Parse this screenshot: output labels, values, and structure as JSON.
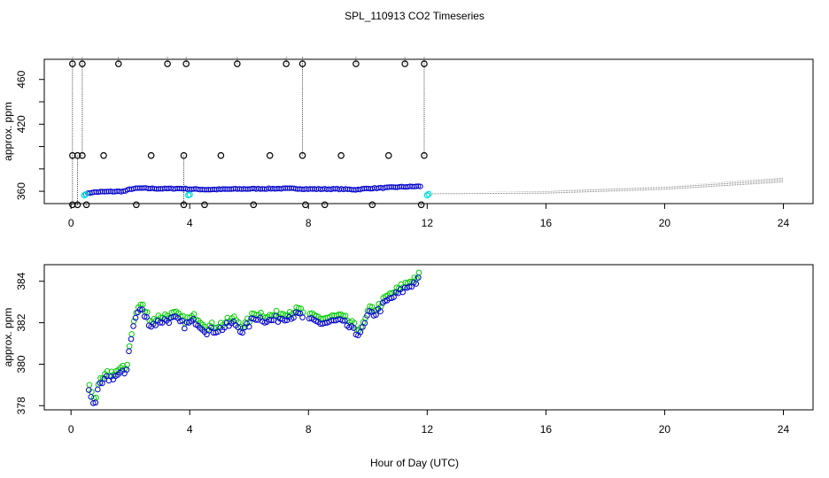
{
  "chart_data": {
    "title": "SPL_110913  CO2 Timeseries",
    "xlabel": "Hour of Day (UTC)",
    "panels": [
      {
        "name": "top",
        "type": "scatter",
        "ylabel": "approx. ppm",
        "xlim": [
          -0.9,
          25.0
        ],
        "ylim": [
          349,
          478
        ],
        "xticks": [
          0,
          4,
          8,
          12,
          16,
          20,
          24
        ],
        "yticks": [
          360,
          380,
          400,
          420,
          440,
          460
        ],
        "ytick_labels": [
          "360",
          "",
          "",
          "420",
          "",
          "460"
        ],
        "colors": {
          "spikes": "#000000",
          "main": "#0000cc",
          "cyan": "#00dddd",
          "grey": "#555555"
        },
        "spike_events": [
          {
            "x": 0.05,
            "values": [
              474,
              392,
              348
            ]
          },
          {
            "x": 0.22,
            "values": [
              392,
              348
            ]
          },
          {
            "x": 0.38,
            "values": [
              474,
              392
            ]
          },
          {
            "x": 0.52,
            "values": [
              348
            ]
          },
          {
            "x": 1.1,
            "values": [
              392
            ]
          },
          {
            "x": 1.6,
            "values": [
              474
            ]
          },
          {
            "x": 2.2,
            "values": [
              348
            ]
          },
          {
            "x": 2.7,
            "values": [
              392
            ]
          },
          {
            "x": 3.25,
            "values": [
              474
            ]
          },
          {
            "x": 3.8,
            "values": [
              392,
              348
            ]
          },
          {
            "x": 3.88,
            "values": [
              474
            ]
          },
          {
            "x": 4.5,
            "values": [
              348
            ]
          },
          {
            "x": 5.05,
            "values": [
              392
            ]
          },
          {
            "x": 5.6,
            "values": [
              474
            ]
          },
          {
            "x": 6.15,
            "values": [
              348
            ]
          },
          {
            "x": 6.7,
            "values": [
              392
            ]
          },
          {
            "x": 7.25,
            "values": [
              474
            ]
          },
          {
            "x": 7.8,
            "values": [
              474,
              392
            ]
          },
          {
            "x": 7.9,
            "values": [
              348
            ]
          },
          {
            "x": 8.55,
            "values": [
              348
            ]
          },
          {
            "x": 9.1,
            "values": [
              392
            ]
          },
          {
            "x": 9.6,
            "values": [
              474
            ]
          },
          {
            "x": 10.15,
            "values": [
              348
            ]
          },
          {
            "x": 10.7,
            "values": [
              392
            ]
          },
          {
            "x": 11.25,
            "values": [
              474
            ]
          },
          {
            "x": 11.8,
            "values": [
              348
            ]
          },
          {
            "x": 11.9,
            "values": [
              474,
              392
            ]
          }
        ],
        "main_series": [
          {
            "x": 0.5,
            "y": 357.5
          },
          {
            "x": 0.7,
            "y": 359
          },
          {
            "x": 1.0,
            "y": 359.5
          },
          {
            "x": 1.5,
            "y": 359.8
          },
          {
            "x": 1.8,
            "y": 360
          },
          {
            "x": 2.0,
            "y": 362
          },
          {
            "x": 2.3,
            "y": 362.8
          },
          {
            "x": 3.0,
            "y": 362.3
          },
          {
            "x": 3.7,
            "y": 362.5
          },
          {
            "x": 4.0,
            "y": 362
          },
          {
            "x": 4.6,
            "y": 361.5
          },
          {
            "x": 5.5,
            "y": 362
          },
          {
            "x": 6.5,
            "y": 362.3
          },
          {
            "x": 7.5,
            "y": 362.5
          },
          {
            "x": 8.0,
            "y": 362
          },
          {
            "x": 9.0,
            "y": 362
          },
          {
            "x": 9.6,
            "y": 361.5
          },
          {
            "x": 10.0,
            "y": 362.5
          },
          {
            "x": 10.5,
            "y": 363
          },
          {
            "x": 11.0,
            "y": 363.8
          },
          {
            "x": 11.8,
            "y": 364.5
          }
        ],
        "cyan_points": [
          {
            "x": 0.45,
            "y": 356.5
          },
          {
            "x": 0.5,
            "y": 357.2
          },
          {
            "x": 3.95,
            "y": 356.5
          },
          {
            "x": 4.0,
            "y": 357
          },
          {
            "x": 12.0,
            "y": 356.5
          },
          {
            "x": 12.05,
            "y": 357.5
          }
        ],
        "grey_series": [
          {
            "x": 12.0,
            "y": 358
          },
          {
            "x": 16.0,
            "y": 359
          },
          {
            "x": 20.0,
            "y": 363
          },
          {
            "x": 24.0,
            "y": 370
          }
        ]
      },
      {
        "name": "bottom",
        "type": "scatter",
        "ylabel": "approx. ppm",
        "xlim": [
          -0.9,
          25.0
        ],
        "ylim": [
          377.8,
          384.8
        ],
        "xticks": [
          0,
          4,
          8,
          12,
          16,
          20,
          24
        ],
        "yticks": [
          378,
          380,
          382,
          384
        ],
        "colors": {
          "blue": "#0000cc",
          "green": "#00cc00"
        },
        "series_key": [
          {
            "x": 0.6,
            "y": 378.7
          },
          {
            "x": 0.8,
            "y": 378.1
          },
          {
            "x": 0.95,
            "y": 378.9
          },
          {
            "x": 1.2,
            "y": 379.3
          },
          {
            "x": 1.6,
            "y": 379.5
          },
          {
            "x": 1.85,
            "y": 379.6
          },
          {
            "x": 2.0,
            "y": 381.2
          },
          {
            "x": 2.2,
            "y": 382.4
          },
          {
            "x": 2.35,
            "y": 382.7
          },
          {
            "x": 2.5,
            "y": 382.3
          },
          {
            "x": 2.7,
            "y": 381.9
          },
          {
            "x": 3.0,
            "y": 382.1
          },
          {
            "x": 3.5,
            "y": 382.2
          },
          {
            "x": 3.8,
            "y": 381.9
          },
          {
            "x": 4.2,
            "y": 382.1
          },
          {
            "x": 4.6,
            "y": 381.6
          },
          {
            "x": 5.0,
            "y": 381.7
          },
          {
            "x": 5.5,
            "y": 382.0
          },
          {
            "x": 5.8,
            "y": 381.6
          },
          {
            "x": 6.2,
            "y": 382.3
          },
          {
            "x": 6.7,
            "y": 382.1
          },
          {
            "x": 7.2,
            "y": 382.3
          },
          {
            "x": 7.7,
            "y": 382.4
          },
          {
            "x": 8.0,
            "y": 382.1
          },
          {
            "x": 8.5,
            "y": 382.0
          },
          {
            "x": 9.0,
            "y": 382.1
          },
          {
            "x": 9.3,
            "y": 381.9
          },
          {
            "x": 9.6,
            "y": 381.5
          },
          {
            "x": 9.85,
            "y": 381.7
          },
          {
            "x": 10.0,
            "y": 382.4
          },
          {
            "x": 10.3,
            "y": 382.5
          },
          {
            "x": 10.6,
            "y": 383.0
          },
          {
            "x": 11.0,
            "y": 383.4
          },
          {
            "x": 11.4,
            "y": 383.8
          },
          {
            "x": 11.75,
            "y": 384.1
          }
        ]
      }
    ]
  }
}
